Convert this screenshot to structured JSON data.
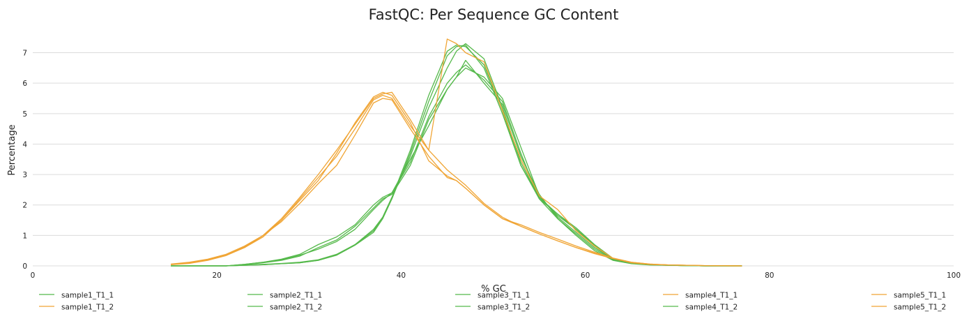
{
  "chart_data": {
    "type": "line",
    "title": "FastQC: Per Sequence GC Content",
    "xlabel": "% GC",
    "ylabel": "Percentage",
    "xlim": [
      0,
      100
    ],
    "ylim": [
      0,
      7.7
    ],
    "x_ticks": [
      "0",
      "20",
      "40",
      "60",
      "80",
      "100"
    ],
    "y_ticks": [
      "0",
      "1",
      "2",
      "3",
      "4",
      "5",
      "6",
      "7"
    ],
    "grid": "horizontal",
    "legend_position": "bottom",
    "colors": {
      "green": "#55b94b",
      "orange": "#f0a535"
    },
    "x": [
      15,
      17,
      19,
      21,
      23,
      25,
      27,
      29,
      31,
      33,
      35,
      37,
      38,
      39,
      41,
      43,
      45,
      46,
      47,
      49,
      51,
      53,
      55,
      57,
      59,
      61,
      63,
      65,
      67,
      69,
      71,
      73,
      75,
      77
    ],
    "series": [
      {
        "name": "sample1_T1_1",
        "color": "#55b94b",
        "values": [
          0,
          0,
          0,
          0,
          0.05,
          0.12,
          0.2,
          0.35,
          0.55,
          0.8,
          1.2,
          1.85,
          2.15,
          2.4,
          3.4,
          4.9,
          6.0,
          6.35,
          6.6,
          6.1,
          5.4,
          3.7,
          2.2,
          1.55,
          1.05,
          0.55,
          0.2,
          0.08,
          0.04,
          0.02,
          0.01,
          0,
          0,
          0
        ]
      },
      {
        "name": "sample1_T1_2",
        "color": "#f0a535",
        "values": [
          0.06,
          0.12,
          0.22,
          0.38,
          0.65,
          1.0,
          1.5,
          2.2,
          2.9,
          3.6,
          4.5,
          5.45,
          5.6,
          5.5,
          4.6,
          3.8,
          3.15,
          2.9,
          2.65,
          2.05,
          1.6,
          1.3,
          1.05,
          0.82,
          0.6,
          0.42,
          0.25,
          0.12,
          0.06,
          0.03,
          0.02,
          0.01,
          0.005,
          0
        ]
      },
      {
        "name": "sample2_T1_1",
        "color": "#55b94b",
        "values": [
          0,
          0,
          0,
          0,
          0.04,
          0.1,
          0.18,
          0.32,
          0.6,
          0.85,
          1.3,
          1.9,
          2.2,
          2.35,
          3.3,
          4.8,
          5.8,
          6.2,
          6.5,
          6.2,
          5.5,
          3.9,
          2.3,
          1.6,
          1.1,
          0.6,
          0.22,
          0.09,
          0.05,
          0.02,
          0.01,
          0,
          0,
          0
        ]
      },
      {
        "name": "sample2_T1_2",
        "color": "#55b94b",
        "values": [
          0,
          0,
          0,
          0,
          0.02,
          0.05,
          0.08,
          0.12,
          0.2,
          0.38,
          0.7,
          1.2,
          1.6,
          2.25,
          3.6,
          5.2,
          6.5,
          7.05,
          7.3,
          6.8,
          5.2,
          3.4,
          2.25,
          1.7,
          1.25,
          0.7,
          0.25,
          0.1,
          0.05,
          0.02,
          0.01,
          0,
          0,
          0
        ]
      },
      {
        "name": "sample3_T1_1",
        "color": "#55b94b",
        "values": [
          0,
          0,
          0,
          0,
          0.02,
          0.04,
          0.07,
          0.1,
          0.18,
          0.35,
          0.68,
          1.1,
          1.55,
          2.2,
          3.7,
          5.4,
          6.9,
          7.2,
          7.25,
          6.5,
          5.0,
          3.3,
          2.2,
          1.7,
          1.2,
          0.65,
          0.22,
          0.08,
          0.04,
          0.02,
          0.01,
          0,
          0,
          0
        ]
      },
      {
        "name": "sample3_T1_2",
        "color": "#55b94b",
        "values": [
          0,
          0,
          0,
          0,
          0.05,
          0.12,
          0.22,
          0.38,
          0.7,
          0.95,
          1.35,
          2.0,
          2.25,
          2.4,
          3.5,
          4.6,
          5.8,
          6.2,
          6.75,
          6.0,
          5.3,
          3.6,
          2.35,
          1.55,
          1.0,
          0.5,
          0.18,
          0.07,
          0.03,
          0.02,
          0.01,
          0,
          0,
          0
        ]
      },
      {
        "name": "sample4_T1_1",
        "color": "#f0a535",
        "values": [
          0.05,
          0.1,
          0.2,
          0.35,
          0.62,
          1.0,
          1.45,
          2.05,
          2.7,
          3.3,
          4.3,
          5.35,
          5.5,
          5.45,
          4.5,
          3.6,
          2.9,
          2.8,
          2.55,
          2.0,
          1.55,
          1.35,
          1.1,
          0.88,
          0.65,
          0.45,
          0.26,
          0.12,
          0.06,
          0.03,
          0.02,
          0.01,
          0.005,
          0
        ]
      },
      {
        "name": "sample4_T1_2",
        "color": "#55b94b",
        "values": [
          0,
          0,
          0,
          0,
          0.02,
          0.04,
          0.07,
          0.1,
          0.18,
          0.36,
          0.7,
          1.15,
          1.6,
          2.25,
          3.8,
          5.6,
          7.05,
          7.25,
          7.2,
          6.6,
          5.1,
          3.3,
          2.25,
          1.65,
          1.2,
          0.68,
          0.23,
          0.09,
          0.04,
          0.02,
          0.01,
          0,
          0,
          0
        ]
      },
      {
        "name": "sample5_T1_1",
        "color": "#f0a535",
        "values": [
          0.05,
          0.1,
          0.2,
          0.35,
          0.6,
          0.95,
          1.5,
          2.15,
          2.8,
          3.7,
          4.7,
          5.55,
          5.7,
          5.6,
          4.7,
          3.45,
          2.95,
          2.8,
          2.55,
          2.0,
          1.55,
          1.3,
          1.05,
          0.82,
          0.6,
          0.4,
          0.24,
          0.11,
          0.05,
          0.03,
          0.02,
          0.01,
          0.005,
          0
        ]
      },
      {
        "name": "sample5_T1_2",
        "color": "#f0a535",
        "values": [
          0.04,
          0.08,
          0.18,
          0.34,
          0.6,
          1.0,
          1.55,
          2.25,
          3.0,
          3.8,
          4.65,
          5.5,
          5.65,
          5.7,
          4.8,
          3.8,
          7.45,
          7.3,
          7.0,
          6.7,
          5.1,
          3.5,
          2.3,
          1.85,
          1.15,
          0.65,
          0.25,
          0.1,
          0.05,
          0.03,
          0.02,
          0.01,
          0.005,
          0
        ]
      }
    ]
  }
}
